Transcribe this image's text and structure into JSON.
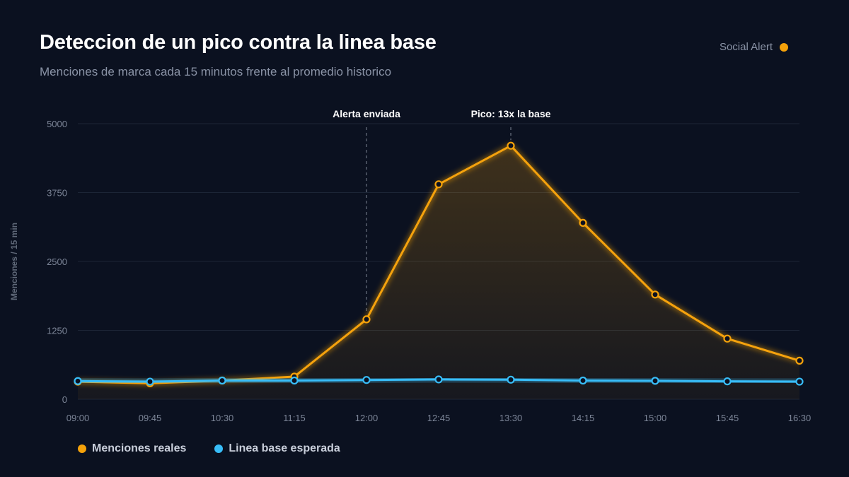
{
  "header": {
    "title": "Deteccion de un pico contra la linea base",
    "subtitle": "Menciones de marca cada 15 minutos frente al promedio historico",
    "brand": "Social Alert"
  },
  "colors": {
    "background": "#0b1120",
    "grid": "#1c2536",
    "actual": "#f5a20a",
    "baseline": "#38bdf8",
    "axis_text": "#7c8597"
  },
  "chart_data": {
    "type": "line",
    "title": "Deteccion de un pico contra la linea base",
    "subtitle": "Menciones de marca cada 15 minutos frente al promedio historico",
    "ylabel": "Menciones / 15 min",
    "xlabel": "",
    "ylim": [
      0,
      5000
    ],
    "yticks": [
      0,
      1250,
      2500,
      3750,
      5000
    ],
    "categories": [
      "09:00",
      "09:45",
      "10:30",
      "11:15",
      "12:00",
      "12:45",
      "13:30",
      "14:15",
      "15:00",
      "15:45",
      "16:30"
    ],
    "series": [
      {
        "name": "Menciones reales",
        "color": "#f5a20a",
        "values": [
          320,
          290,
          340,
          410,
          1450,
          3900,
          4600,
          3200,
          1900,
          1100,
          700
        ]
      },
      {
        "name": "Linea base esperada",
        "color": "#38bdf8",
        "values": [
          330,
          320,
          340,
          340,
          350,
          360,
          355,
          340,
          335,
          325,
          320
        ]
      }
    ],
    "annotations": [
      {
        "label": "Alerta enviada",
        "x": "12:00"
      },
      {
        "label": "Pico: 13x la base",
        "x": "13:30"
      }
    ],
    "grid": true,
    "legend_position": "bottom-left"
  }
}
